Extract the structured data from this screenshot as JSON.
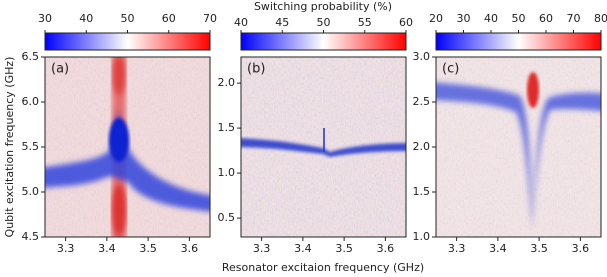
{
  "xlabel": "Resonator excitaion frequency (GHz)",
  "ylabel": "Qubit excitation frequency (GHz)",
  "colorbar_label": "Switching probability (%)",
  "chart_data": [
    {
      "type": "heatmap",
      "panel_label": "(a)",
      "xlim": [
        3.25,
        3.65
      ],
      "xticks": [
        3.3,
        3.4,
        3.5,
        3.6
      ],
      "ylim": [
        4.5,
        6.5
      ],
      "yticks": [
        4.5,
        {
          "value": 5,
          "label": "5.0"
        },
        5.5,
        {
          "value": 6,
          "label": "6.0"
        },
        6.5
      ],
      "clim": [
        30,
        70
      ],
      "cticks": [
        30,
        40,
        50,
        60,
        70
      ]
    },
    {
      "type": "heatmap",
      "panel_label": "(b)",
      "xlim": [
        3.25,
        3.65
      ],
      "xticks": [
        3.3,
        3.4,
        3.5,
        3.6
      ],
      "ylim": [
        0.29,
        2.29
      ],
      "yticks": [
        0.5,
        {
          "value": 1,
          "label": "1.0"
        },
        1.5,
        {
          "value": 2,
          "label": "2.0"
        }
      ],
      "clim": [
        40,
        60
      ],
      "cticks": [
        40,
        45,
        50,
        55,
        60
      ]
    },
    {
      "type": "heatmap",
      "panel_label": "(c)",
      "xlim": [
        3.25,
        3.65
      ],
      "xticks": [
        3.3,
        3.4,
        3.5,
        3.6
      ],
      "ylim": [
        1,
        3
      ],
      "yticks": [
        {
          "value": 1,
          "label": "1.0"
        },
        1.5,
        {
          "value": 2,
          "label": "2.0"
        },
        2.5,
        {
          "value": 3,
          "label": "3.0"
        }
      ],
      "clim": [
        20,
        80
      ],
      "cticks": [
        20,
        30,
        40,
        50,
        60,
        70,
        80
      ]
    }
  ]
}
